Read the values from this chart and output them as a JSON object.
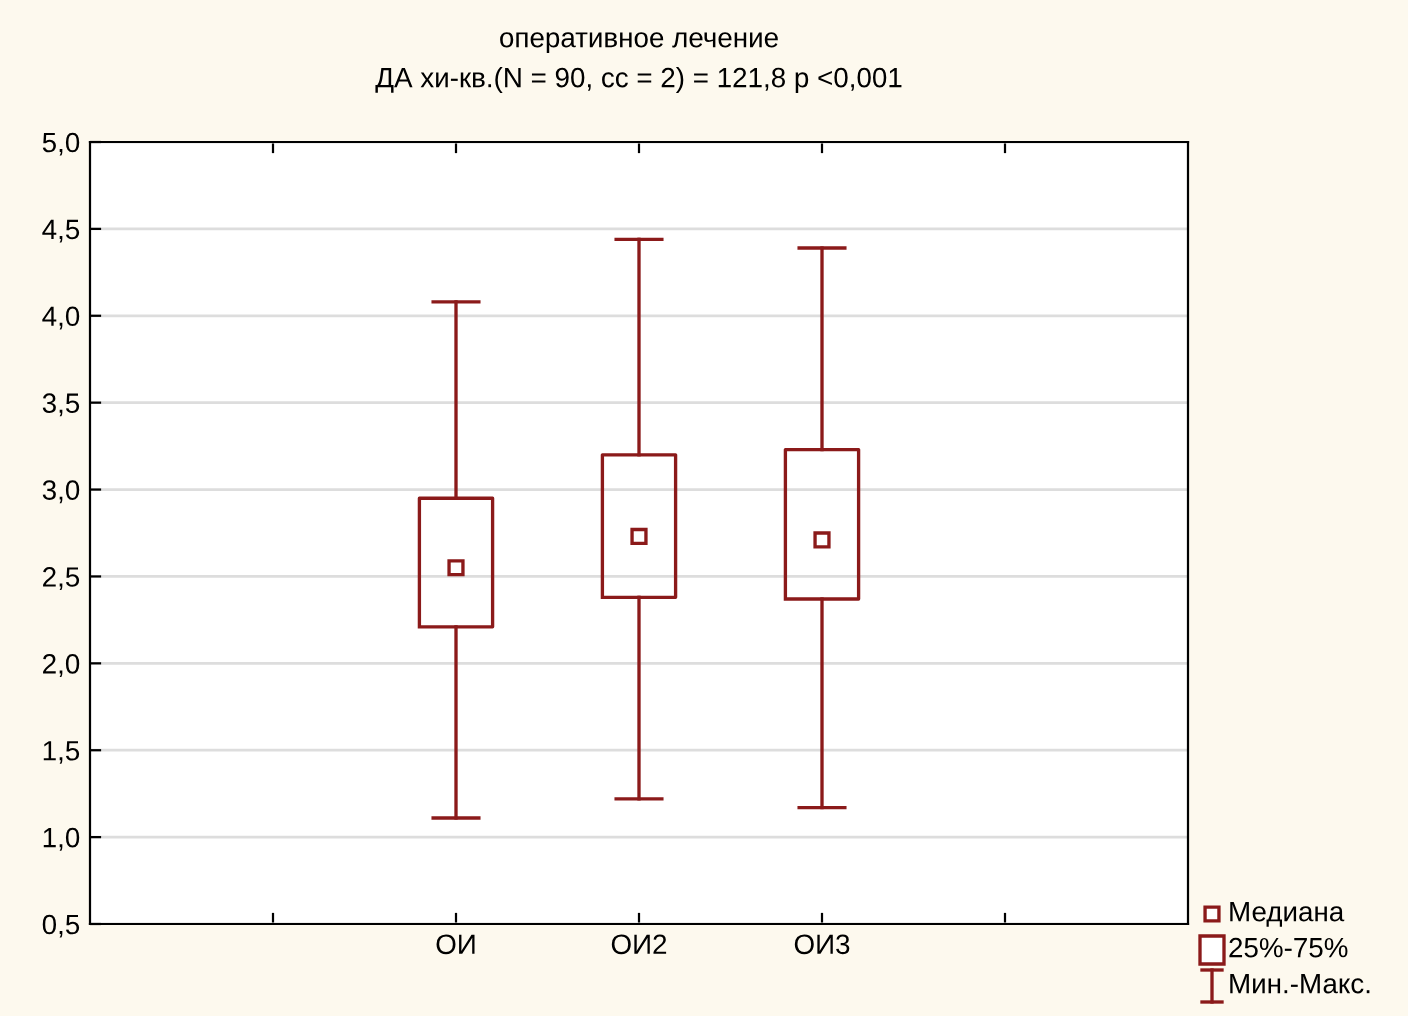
{
  "chart_data": {
    "type": "box",
    "title": "оперативное лечение",
    "subtitle": "ДА хи-кв.(N = 90, cc = 2) = 121,8 p <0,001",
    "categories": [
      null,
      "ОИ",
      "ОИ2",
      "ОИ3",
      null
    ],
    "series": [
      {
        "color": "#8b1a1a",
        "boxes": [
          null,
          {
            "low": 1.11,
            "q1": 2.21,
            "median": 2.55,
            "q3": 2.95,
            "high": 4.08
          },
          {
            "low": 1.22,
            "q1": 2.38,
            "median": 2.73,
            "q3": 3.2,
            "high": 4.44
          },
          {
            "low": 1.17,
            "q1": 2.37,
            "median": 2.71,
            "q3": 3.23,
            "high": 4.39
          },
          null
        ]
      }
    ],
    "ylim": [
      0.5,
      5.0
    ],
    "yticks": [
      {
        "value": 0.5,
        "label": "0,5"
      },
      {
        "value": 1.0,
        "label": "1,0"
      },
      {
        "value": 1.5,
        "label": "1,5"
      },
      {
        "value": 2.0,
        "label": "2,0"
      },
      {
        "value": 2.5,
        "label": "2,5"
      },
      {
        "value": 3.0,
        "label": "3,0"
      },
      {
        "value": 3.5,
        "label": "3,5"
      },
      {
        "value": 4.0,
        "label": "4,0"
      },
      {
        "value": 4.5,
        "label": "4,5"
      },
      {
        "value": 5.0,
        "label": "5,0"
      }
    ],
    "grid": "y",
    "marker": "square",
    "annotations": [
      "Медиана",
      "25%-75%",
      "Мин.-Макс."
    ]
  }
}
